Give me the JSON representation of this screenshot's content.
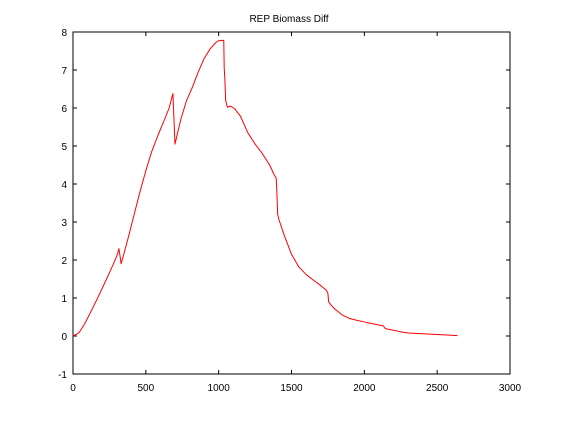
{
  "chart_data": {
    "type": "line",
    "title": "REP Biomass Diff",
    "xlabel": "",
    "ylabel": "",
    "xlim": [
      0,
      3000
    ],
    "ylim": [
      -1,
      8
    ],
    "grid": false,
    "x_ticks": [
      0,
      500,
      1000,
      1500,
      2000,
      2500,
      3000
    ],
    "y_ticks": [
      -1,
      0,
      1,
      2,
      3,
      4,
      5,
      6,
      7,
      8
    ],
    "series": [
      {
        "color": "#ff0000",
        "points": [
          [
            0,
            0.0
          ],
          [
            40,
            0.08
          ],
          [
            80,
            0.32
          ],
          [
            120,
            0.62
          ],
          [
            160,
            0.93
          ],
          [
            200,
            1.25
          ],
          [
            240,
            1.58
          ],
          [
            280,
            1.92
          ],
          [
            305,
            2.15
          ],
          [
            315,
            2.3
          ],
          [
            325,
            2.05
          ],
          [
            330,
            1.9
          ],
          [
            345,
            2.1
          ],
          [
            380,
            2.6
          ],
          [
            420,
            3.2
          ],
          [
            460,
            3.8
          ],
          [
            500,
            4.35
          ],
          [
            540,
            4.85
          ],
          [
            580,
            5.25
          ],
          [
            620,
            5.62
          ],
          [
            660,
            6.0
          ],
          [
            686,
            6.38
          ],
          [
            700,
            5.05
          ],
          [
            740,
            5.7
          ],
          [
            780,
            6.2
          ],
          [
            820,
            6.55
          ],
          [
            860,
            6.95
          ],
          [
            900,
            7.3
          ],
          [
            940,
            7.55
          ],
          [
            980,
            7.72
          ],
          [
            1000,
            7.77
          ],
          [
            1020,
            7.78
          ],
          [
            1035,
            7.78
          ],
          [
            1038,
            7.05
          ],
          [
            1042,
            6.8
          ],
          [
            1048,
            6.2
          ],
          [
            1060,
            6.02
          ],
          [
            1080,
            6.05
          ],
          [
            1110,
            5.98
          ],
          [
            1150,
            5.78
          ],
          [
            1200,
            5.35
          ],
          [
            1250,
            5.05
          ],
          [
            1300,
            4.8
          ],
          [
            1350,
            4.5
          ],
          [
            1380,
            4.25
          ],
          [
            1395,
            4.15
          ],
          [
            1400,
            3.75
          ],
          [
            1405,
            3.2
          ],
          [
            1415,
            3.05
          ],
          [
            1450,
            2.65
          ],
          [
            1500,
            2.15
          ],
          [
            1550,
            1.82
          ],
          [
            1600,
            1.62
          ],
          [
            1650,
            1.47
          ],
          [
            1700,
            1.33
          ],
          [
            1740,
            1.2
          ],
          [
            1750,
            1.12
          ],
          [
            1755,
            0.9
          ],
          [
            1770,
            0.82
          ],
          [
            1800,
            0.7
          ],
          [
            1850,
            0.55
          ],
          [
            1900,
            0.46
          ],
          [
            1950,
            0.41
          ],
          [
            2000,
            0.37
          ],
          [
            2050,
            0.33
          ],
          [
            2100,
            0.29
          ],
          [
            2130,
            0.27
          ],
          [
            2140,
            0.21
          ],
          [
            2150,
            0.19
          ],
          [
            2200,
            0.15
          ],
          [
            2250,
            0.11
          ],
          [
            2300,
            0.08
          ],
          [
            2350,
            0.07
          ],
          [
            2400,
            0.06
          ],
          [
            2450,
            0.05
          ],
          [
            2500,
            0.04
          ],
          [
            2550,
            0.03
          ],
          [
            2600,
            0.02
          ],
          [
            2640,
            0.01
          ]
        ]
      }
    ]
  }
}
